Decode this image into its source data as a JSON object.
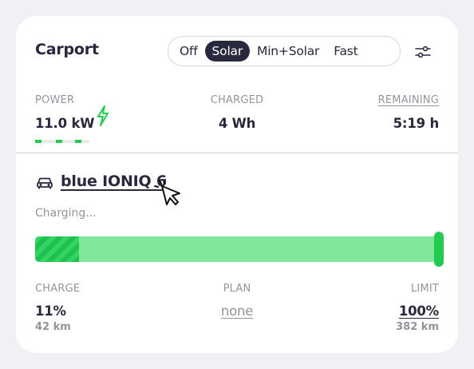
{
  "loadpoint": {
    "title": "Carport",
    "modes": [
      "Off",
      "Solar",
      "Min+Solar",
      "Fast"
    ],
    "active_mode": "Solar"
  },
  "stats": {
    "power_label": "POWER",
    "power_value": "11.0 kW",
    "charged_label": "CHARGED",
    "charged_value": "4 Wh",
    "remaining_label": "REMAINING",
    "remaining_value": "5:19 h"
  },
  "vehicle": {
    "name": "blue IONIQ 6",
    "status": "Charging...",
    "soc_percent": 11,
    "limit_percent": 100
  },
  "footer": {
    "charge_label": "CHARGE",
    "charge_value": "11%",
    "charge_range": "42 km",
    "plan_label": "PLAN",
    "plan_value": "none",
    "limit_label": "LIMIT",
    "limit_value": "100%",
    "limit_range": "382 km"
  },
  "colors": {
    "accent_green": "#1fce50",
    "bar_light": "#80e79a",
    "dark": "#28293e",
    "muted": "#93949e"
  },
  "icons": {
    "settings": "sliders-icon",
    "power": "lightning-bolt-icon",
    "vehicle": "car-icon",
    "pointer": "mouse-pointer-click-icon"
  }
}
